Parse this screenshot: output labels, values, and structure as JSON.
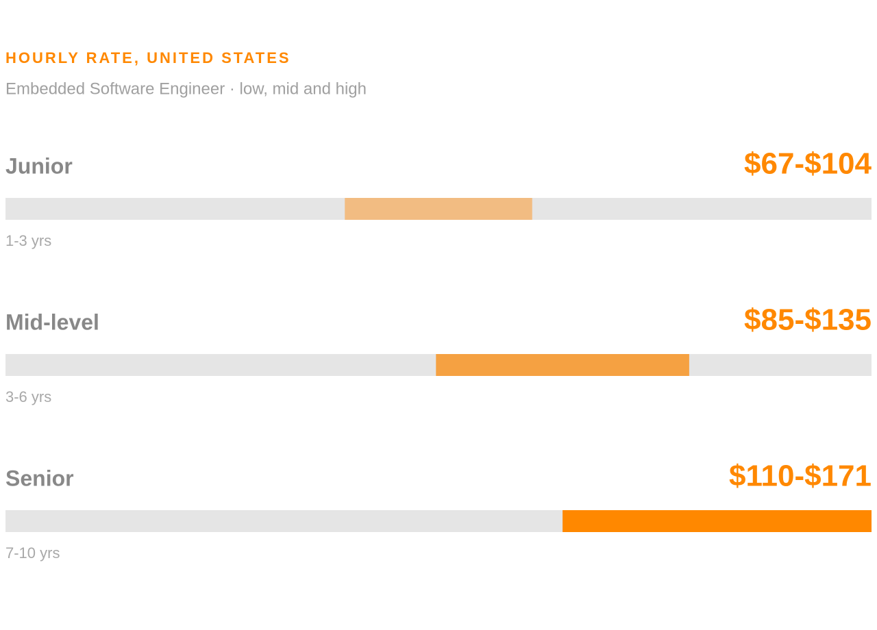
{
  "chart_data": {
    "type": "range-bar",
    "title": "HOURLY RATE, UNITED STATES",
    "subtitle": "Embedded Software Engineer · low, mid and high",
    "categories": [
      "Junior",
      "Mid-level",
      "Senior"
    ],
    "category_notes": [
      "1-3 yrs",
      "3-6 yrs",
      "7-10 yrs"
    ],
    "low": [
      67,
      85,
      110
    ],
    "high": [
      104,
      135,
      171
    ],
    "value_labels": [
      "$67-$104",
      "$85-$135",
      "$110-$171"
    ],
    "colors": [
      "#f2bc82",
      "#f5a142",
      "#ff8800"
    ],
    "track_color": "#e5e5e5",
    "xlim": [
      0,
      171
    ]
  }
}
